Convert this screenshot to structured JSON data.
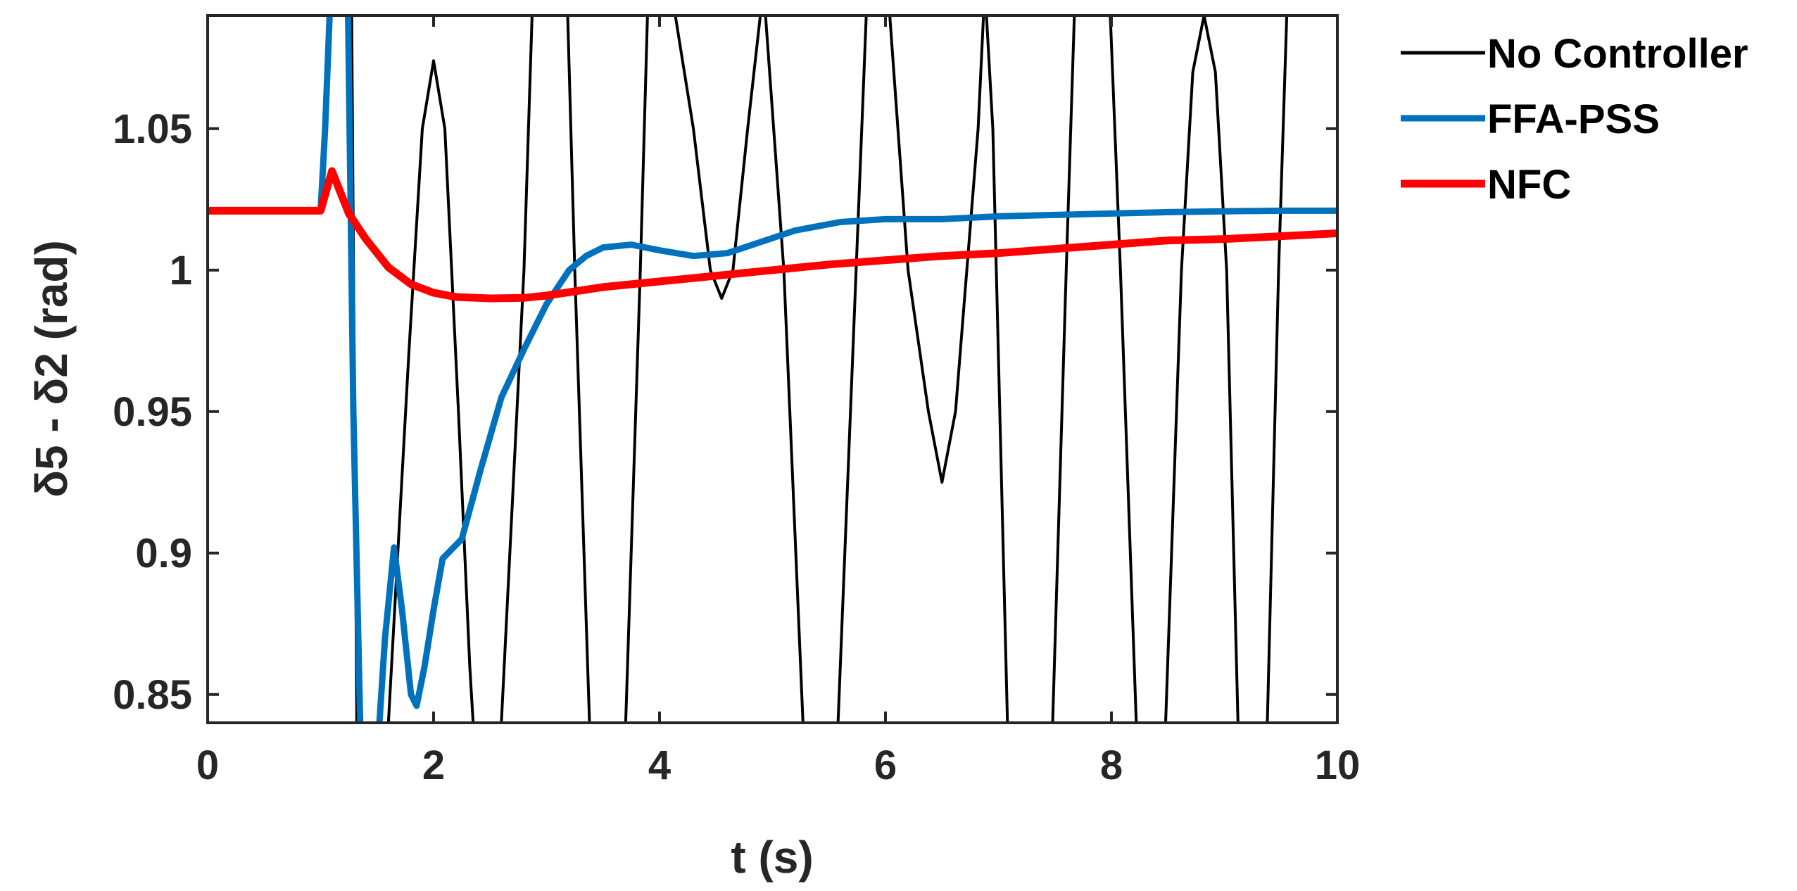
{
  "chart_data": {
    "type": "line",
    "title": "",
    "xlabel": "t (s)",
    "ylabel": "δ5 - δ2 (rad)",
    "xlim": [
      0,
      10
    ],
    "ylim": [
      0.84,
      1.09
    ],
    "xticks": [
      "0",
      "2",
      "4",
      "6",
      "8",
      "10"
    ],
    "yticks": [
      "0.85",
      "0.9",
      "0.95",
      "1",
      "1.05"
    ],
    "grid": false,
    "legend_position": "outside-top-right",
    "series": [
      {
        "name": "No Controller",
        "color": "#000000",
        "points": [
          [
            0,
            1.021
          ],
          [
            1.0,
            1.021
          ],
          [
            1.05,
            1.05
          ],
          [
            1.12,
            1.12
          ],
          [
            1.27,
            1.12
          ],
          [
            1.32,
            0.84
          ],
          [
            1.39,
            0.8
          ],
          [
            1.53,
            0.8
          ],
          [
            1.6,
            0.84
          ],
          [
            1.78,
            0.97
          ],
          [
            1.9,
            1.05
          ],
          [
            2.0,
            1.074
          ],
          [
            2.1,
            1.05
          ],
          [
            2.22,
            0.95
          ],
          [
            2.32,
            0.86
          ],
          [
            2.38,
            0.82
          ],
          [
            2.48,
            0.82
          ],
          [
            2.6,
            0.84
          ],
          [
            2.8,
            1.0
          ],
          [
            2.88,
            1.1
          ],
          [
            3.18,
            1.1
          ],
          [
            3.25,
            1.0
          ],
          [
            3.38,
            0.84
          ],
          [
            3.55,
            0.8
          ],
          [
            3.7,
            0.84
          ],
          [
            3.83,
            1.0
          ],
          [
            3.9,
            1.1
          ],
          [
            4.1,
            1.1
          ],
          [
            4.3,
            1.05
          ],
          [
            4.45,
            1.0
          ],
          [
            4.55,
            0.99
          ],
          [
            4.65,
            1.0
          ],
          [
            4.78,
            1.05
          ],
          [
            4.92,
            1.1
          ],
          [
            5.1,
            1.0
          ],
          [
            5.27,
            0.84
          ],
          [
            5.42,
            0.8
          ],
          [
            5.58,
            0.84
          ],
          [
            5.74,
            1.0
          ],
          [
            5.84,
            1.1
          ],
          [
            6.02,
            1.1
          ],
          [
            6.2,
            1.0
          ],
          [
            6.38,
            0.95
          ],
          [
            6.5,
            0.925
          ],
          [
            6.62,
            0.95
          ],
          [
            6.82,
            1.05
          ],
          [
            6.88,
            1.1
          ],
          [
            6.95,
            1.05
          ],
          [
            7.08,
            0.84
          ],
          [
            7.18,
            0.8
          ],
          [
            7.38,
            0.8
          ],
          [
            7.48,
            0.84
          ],
          [
            7.6,
            1.0
          ],
          [
            7.68,
            1.1
          ],
          [
            7.98,
            1.1
          ],
          [
            8.08,
            1.0
          ],
          [
            8.22,
            0.84
          ],
          [
            8.36,
            0.8
          ],
          [
            8.48,
            0.84
          ],
          [
            8.62,
            1.0
          ],
          [
            8.72,
            1.07
          ],
          [
            8.82,
            1.09
          ],
          [
            8.92,
            1.07
          ],
          [
            9.02,
            1.0
          ],
          [
            9.12,
            0.84
          ],
          [
            9.22,
            0.8
          ],
          [
            9.38,
            0.84
          ],
          [
            9.48,
            1.0
          ],
          [
            9.56,
            1.1
          ],
          [
            9.75,
            1.1
          ]
        ]
      },
      {
        "name": "FFA-PSS",
        "color": "#0072BD",
        "points": [
          [
            0,
            1.021
          ],
          [
            1.0,
            1.021
          ],
          [
            1.04,
            1.05
          ],
          [
            1.09,
            1.1
          ],
          [
            1.24,
            1.1
          ],
          [
            1.29,
            0.95
          ],
          [
            1.35,
            0.84
          ],
          [
            1.39,
            0.8
          ],
          [
            1.47,
            0.8
          ],
          [
            1.52,
            0.84
          ],
          [
            1.57,
            0.87
          ],
          [
            1.65,
            0.902
          ],
          [
            1.72,
            0.88
          ],
          [
            1.8,
            0.85
          ],
          [
            1.85,
            0.846
          ],
          [
            1.92,
            0.86
          ],
          [
            2.0,
            0.88
          ],
          [
            2.08,
            0.898
          ],
          [
            2.25,
            0.905
          ],
          [
            2.42,
            0.93
          ],
          [
            2.6,
            0.955
          ],
          [
            2.8,
            0.972
          ],
          [
            3.0,
            0.988
          ],
          [
            3.2,
            1.0
          ],
          [
            3.35,
            1.005
          ],
          [
            3.5,
            1.008
          ],
          [
            3.75,
            1.009
          ],
          [
            4.0,
            1.007
          ],
          [
            4.3,
            1.005
          ],
          [
            4.6,
            1.006
          ],
          [
            4.9,
            1.01
          ],
          [
            5.2,
            1.014
          ],
          [
            5.6,
            1.017
          ],
          [
            6.0,
            1.018
          ],
          [
            6.5,
            1.018
          ],
          [
            7.0,
            1.019
          ],
          [
            7.5,
            1.0195
          ],
          [
            8.0,
            1.02
          ],
          [
            8.5,
            1.0205
          ],
          [
            9.0,
            1.0208
          ],
          [
            9.5,
            1.021
          ],
          [
            10.0,
            1.021
          ]
        ]
      },
      {
        "name": "NFC",
        "color": "#FF0000",
        "points": [
          [
            0,
            1.021
          ],
          [
            1.0,
            1.021
          ],
          [
            1.05,
            1.028
          ],
          [
            1.1,
            1.035
          ],
          [
            1.15,
            1.03
          ],
          [
            1.25,
            1.02
          ],
          [
            1.4,
            1.011
          ],
          [
            1.6,
            1.001
          ],
          [
            1.8,
            0.995
          ],
          [
            2.0,
            0.992
          ],
          [
            2.2,
            0.9905
          ],
          [
            2.5,
            0.99
          ],
          [
            2.8,
            0.9902
          ],
          [
            3.0,
            0.991
          ],
          [
            3.5,
            0.994
          ],
          [
            4.0,
            0.996
          ],
          [
            4.5,
            0.998
          ],
          [
            5.0,
            1.0
          ],
          [
            5.5,
            1.002
          ],
          [
            6.0,
            1.0035
          ],
          [
            6.5,
            1.005
          ],
          [
            7.0,
            1.006
          ],
          [
            7.5,
            1.0075
          ],
          [
            8.0,
            1.009
          ],
          [
            8.5,
            1.0105
          ],
          [
            9.0,
            1.011
          ],
          [
            9.5,
            1.012
          ],
          [
            10.0,
            1.013
          ]
        ]
      }
    ]
  }
}
